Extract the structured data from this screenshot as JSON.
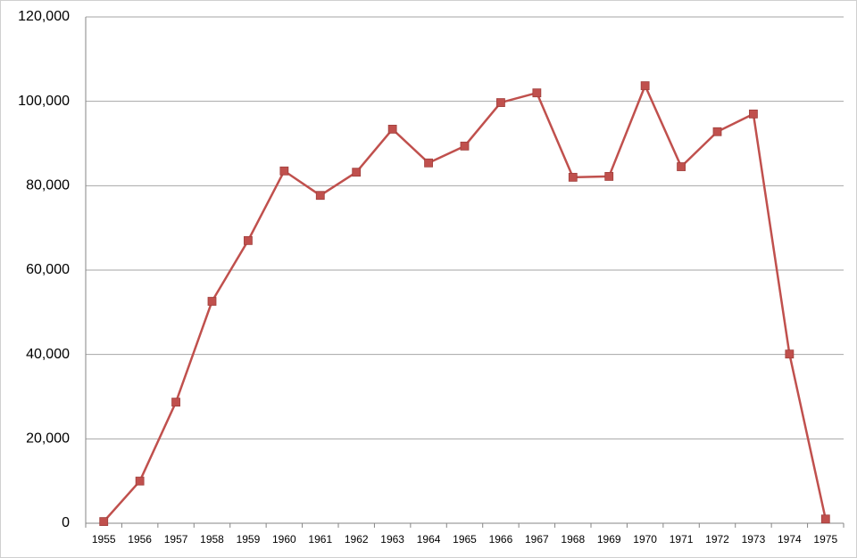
{
  "chart_data": {
    "type": "line",
    "categories": [
      "1955",
      "1956",
      "1957",
      "1958",
      "1959",
      "1960",
      "1961",
      "1962",
      "1963",
      "1964",
      "1965",
      "1966",
      "1967",
      "1968",
      "1969",
      "1970",
      "1971",
      "1972",
      "1973",
      "1974",
      "1975"
    ],
    "values": [
      400,
      10000,
      28700,
      52600,
      67000,
      83500,
      77700,
      83200,
      93400,
      85400,
      89400,
      99700,
      102000,
      82000,
      82200,
      103700,
      84500,
      92800,
      97000,
      40100,
      1000
    ],
    "color": "#c0504d",
    "ylim": [
      0,
      120000
    ],
    "yticks": [
      0,
      {
        "value": 20000,
        "label": "20,000"
      },
      {
        "value": 40000,
        "label": "40,000"
      },
      {
        "value": 60000,
        "label": "60,000"
      },
      {
        "value": 80000,
        "label": "80,000"
      },
      {
        "value": 100000,
        "label": "100,000"
      },
      {
        "value": 120000,
        "label": "120,000"
      }
    ],
    "grid": true
  }
}
